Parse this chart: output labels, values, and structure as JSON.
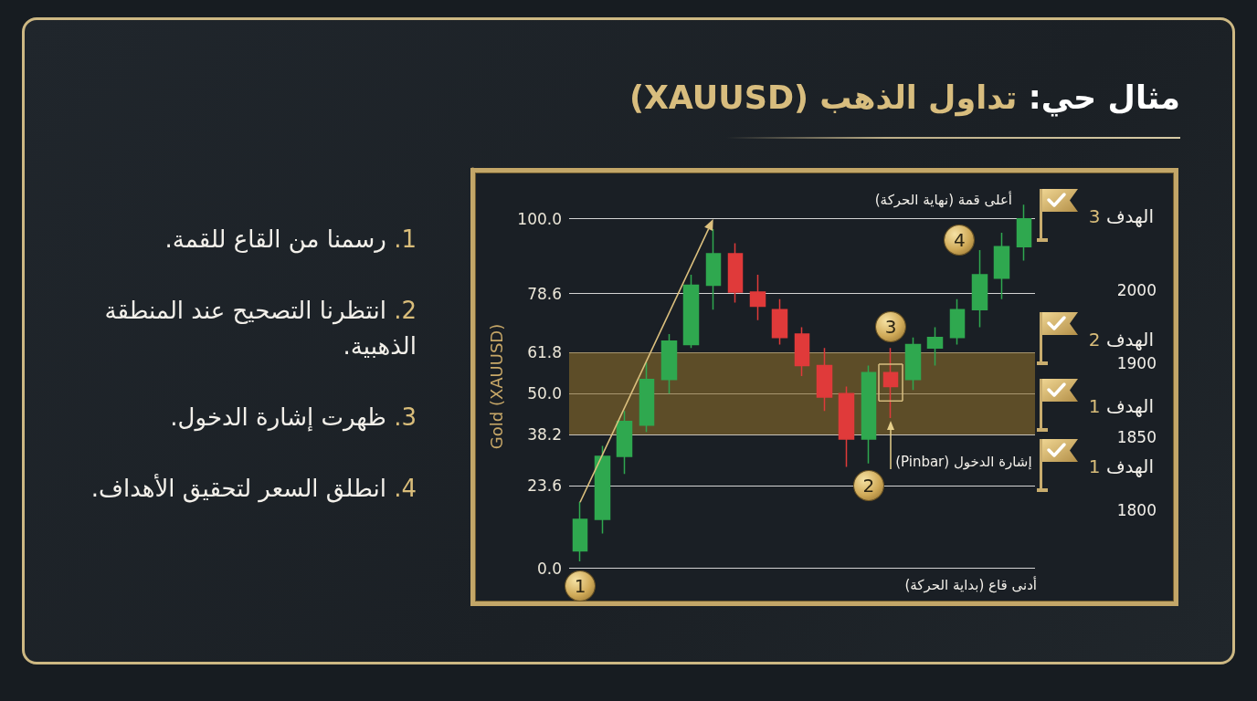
{
  "chart_data": {
    "type": "candlestick",
    "title": "مثال حي: تداول الذهب (XAUUSD)",
    "ylabel": "Gold (XAUUSD)",
    "categories": [
      null,
      null,
      null,
      null,
      null,
      null,
      null,
      null,
      null,
      null,
      null,
      null,
      null,
      null,
      null,
      null,
      null,
      null,
      null,
      null,
      null
    ],
    "ohlc": [
      [
        5,
        19,
        2,
        14
      ],
      [
        14,
        35,
        10,
        32
      ],
      [
        32,
        45,
        27,
        42
      ],
      [
        41,
        59,
        39,
        54
      ],
      [
        54,
        67,
        50,
        65
      ],
      [
        64,
        84,
        63,
        81
      ],
      [
        81,
        97,
        74,
        90
      ],
      [
        90,
        93,
        76,
        79
      ],
      [
        79,
        84,
        71,
        75
      ],
      [
        74,
        77,
        64,
        66
      ],
      [
        67,
        69,
        55,
        58
      ],
      [
        58,
        63,
        45,
        49
      ],
      [
        50,
        52,
        29,
        37
      ],
      [
        37,
        58,
        30,
        56
      ],
      [
        56,
        63,
        43,
        52
      ],
      [
        54,
        66,
        51,
        64
      ],
      [
        63,
        69,
        58,
        66
      ],
      [
        66,
        77,
        64,
        74
      ],
      [
        74,
        91,
        69,
        84
      ],
      [
        83,
        96,
        77,
        92
      ],
      [
        92,
        104,
        88,
        100
      ]
    ],
    "colors": [
      "#2fa84f",
      "#2fa84f",
      "#2fa84f",
      "#2fa84f",
      "#2fa84f",
      "#2fa84f",
      "#2fa84f",
      "#e03a3a",
      "#e03a3a",
      "#e03a3a",
      "#e03a3a",
      "#e03a3a",
      "#e03a3a",
      "#2fa84f",
      "#e03a3a",
      "#2fa84f",
      "#2fa84f",
      "#2fa84f",
      "#2fa84f",
      "#2fa84f",
      "#2fa84f"
    ],
    "ylim": [
      -10,
      114
    ],
    "yticks": [
      {
        "value": 0,
        "label": "0.0"
      },
      23.6,
      38.2,
      {
        "value": 50,
        "label": "50.0"
      },
      61.8,
      78.6,
      {
        "value": 100,
        "label": "100.0"
      }
    ],
    "grid": "y",
    "tick_labels": "y",
    "bands": [
      {
        "axis": "y",
        "from": 38.2,
        "to": 61.8,
        "color": "#8b6d2c"
      }
    ],
    "annotations": [
      "1. رسمنا من القاع للقمة.",
      "2. انتظرنا التصحيح عند المنطقة الذهبية.",
      "3. ظهرت إشارة الدخول.",
      "4. انطلق السعر لتحقيق الأهداف.",
      "أعلى قمة (نهاية الحركة)",
      "أدنى قاع (بداية الحركة)",
      "إشارة الدخول (Pinbar)",
      {
        "text": "1",
        "y": -5
      },
      {
        "text": "2",
        "y": 23.6
      },
      {
        "text": "3",
        "y": 69
      },
      {
        "text": "4",
        "y": 94
      },
      "الهدف 3",
      "2000",
      "الهدف 2",
      "1900",
      "الهدف 1",
      "1850",
      "الهدف 1",
      "1800"
    ]
  }
}
